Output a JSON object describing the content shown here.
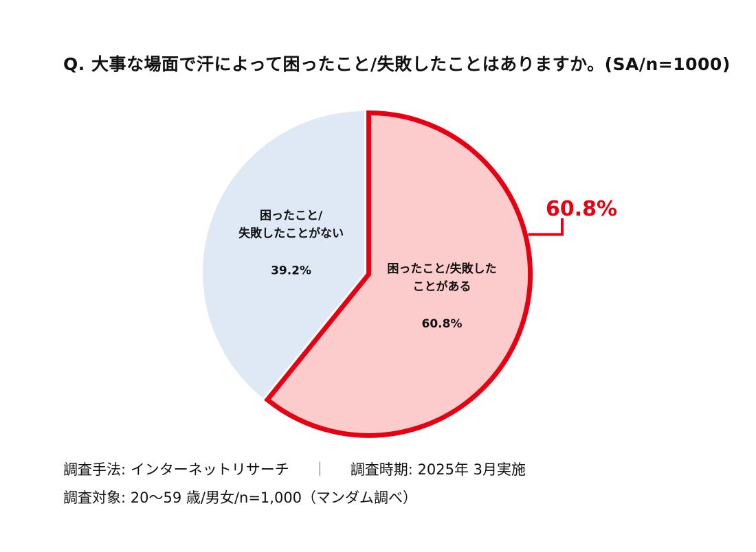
{
  "chart_data": {
    "type": "pie",
    "title": "Q. 大事な場面で汗によって困ったこと/失敗したことはありますか。(SA/n=1000)",
    "slices": [
      {
        "label_lines": [
          "困ったこと/失敗した",
          "ことがある"
        ],
        "value": 60.8,
        "value_label": "60.8%",
        "color": "#fccbcb",
        "highlight": true
      },
      {
        "label_lines": [
          "困ったこと/",
          "失敗したことがない"
        ],
        "value": 39.2,
        "value_label": "39.2%",
        "color": "#dfe9f5",
        "highlight": false
      }
    ],
    "highlight_color": "#e60012",
    "callout_label": "60.8%"
  },
  "notes": {
    "method": "調査手法: インターネットリサーチ",
    "separator": "｜",
    "period": "調査時期: 2025年 3月実施",
    "target": "調査対象: 20～59 歳/男女/n=1,000（マンダム調べ）"
  }
}
